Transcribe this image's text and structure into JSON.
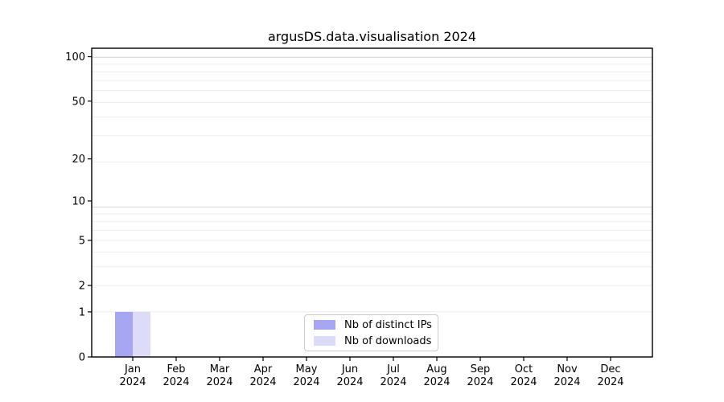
{
  "chart_data": {
    "type": "bar",
    "title": "argusDS.data.visualisation 2024",
    "categories": [
      [
        "Jan",
        "2024"
      ],
      [
        "Feb",
        "2024"
      ],
      [
        "Mar",
        "2024"
      ],
      [
        "Apr",
        "2024"
      ],
      [
        "May",
        "2024"
      ],
      [
        "Jun",
        "2024"
      ],
      [
        "Jul",
        "2024"
      ],
      [
        "Aug",
        "2024"
      ],
      [
        "Sep",
        "2024"
      ],
      [
        "Oct",
        "2024"
      ],
      [
        "Nov",
        "2024"
      ],
      [
        "Dec",
        "2024"
      ]
    ],
    "series": [
      {
        "name": "Nb of distinct IPs",
        "color": "#a6a6f2",
        "values": [
          1,
          0,
          0,
          0,
          0,
          0,
          0,
          0,
          0,
          0,
          0,
          0
        ]
      },
      {
        "name": "Nb of downloads",
        "color": "#dcdcf9",
        "values": [
          1,
          0,
          0,
          0,
          0,
          0,
          0,
          0,
          0,
          0,
          0,
          0
        ]
      }
    ],
    "yscale": "log10(1+y)",
    "ylim": [
      0,
      114
    ],
    "ytick_values": [
      100,
      50,
      20,
      10,
      5,
      2,
      1,
      0
    ],
    "ytick_labels": [
      "100",
      "50",
      "20",
      "10",
      "5",
      "2",
      "1",
      "0"
    ],
    "xlabel": "",
    "ylabel": "",
    "grid": true,
    "legend_position": "lower center inside axes",
    "colors": {
      "axis": "#000000",
      "grid_minor": "#ececec",
      "grid_major": "#d2d2d2",
      "tick_text": "#000000",
      "legend_border": "#cccccc"
    }
  }
}
